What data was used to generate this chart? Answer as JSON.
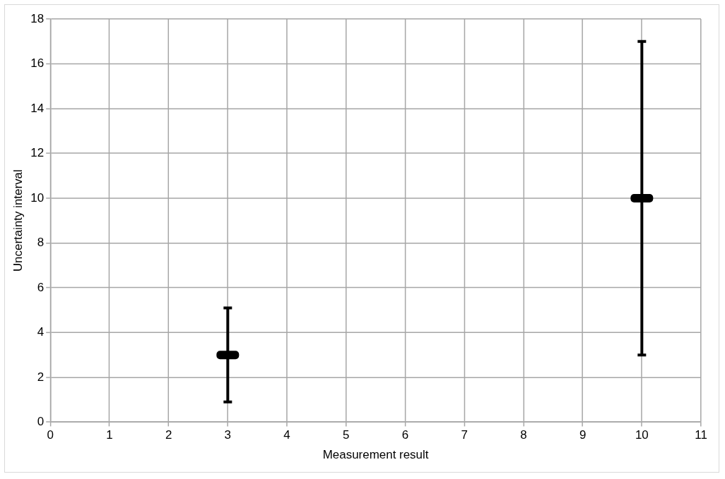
{
  "chart_data": {
    "type": "scatter",
    "xlabel": "Measurement result",
    "ylabel": "Uncertainty interval",
    "series": [
      {
        "color": "#000000",
        "x": [
          3,
          10
        ],
        "values": [
          3,
          10
        ],
        "errors": [
          2.1,
          7
        ]
      }
    ],
    "xlim": [
      0,
      11
    ],
    "xticks": [
      0,
      1,
      2,
      3,
      4,
      5,
      6,
      7,
      8,
      9,
      10,
      11
    ],
    "ylim": [
      0,
      18
    ],
    "yticks": [
      0,
      2,
      4,
      6,
      8,
      10,
      12,
      14,
      16,
      18
    ],
    "grid": true,
    "legend": false,
    "marker": "square"
  }
}
